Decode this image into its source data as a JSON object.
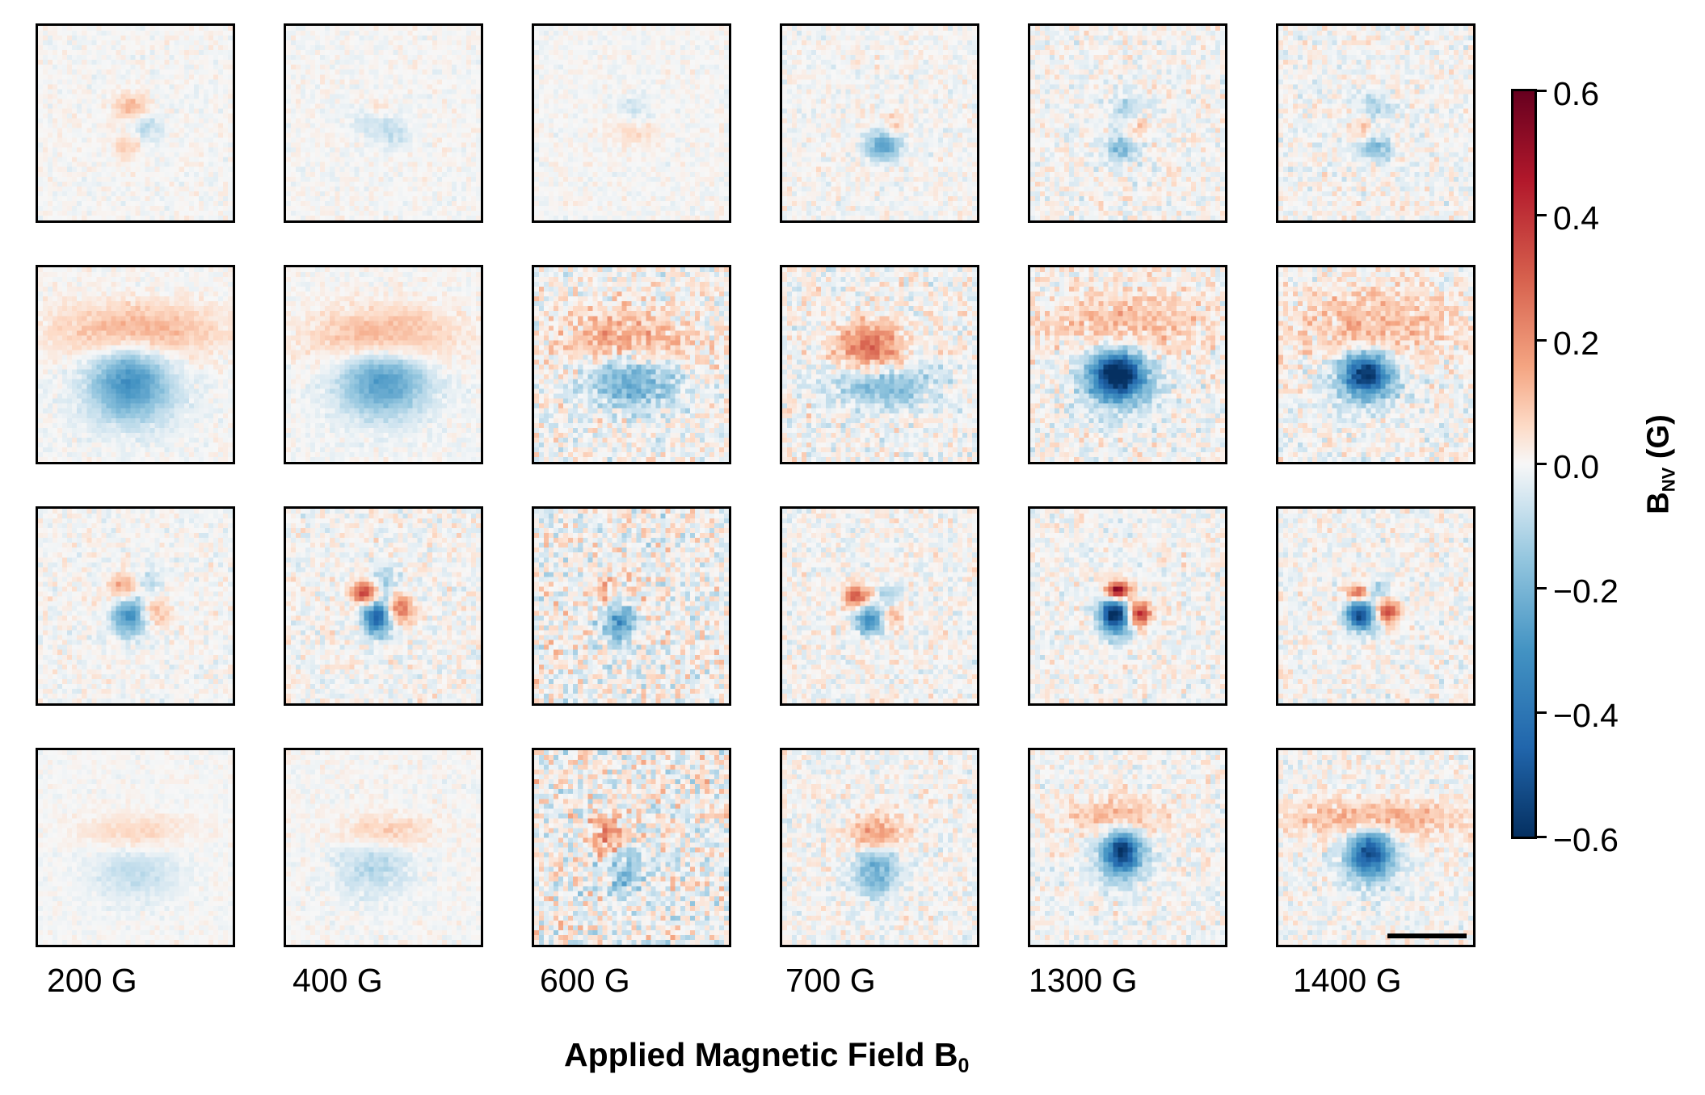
{
  "chart_data": {
    "type": "heatmap",
    "title": "",
    "xlabel": "Applied Magnetic Field B",
    "xlabel_subscript": "0",
    "columns": [
      "200 G",
      "400 G",
      "600 G",
      "700 G",
      "1300 G",
      "1400 G"
    ],
    "rows": 4,
    "colorbar": {
      "label": "B",
      "label_subscript": "NV",
      "label_unit": "(G)",
      "colormap": "RdBu_r",
      "range": [
        -0.6,
        0.6
      ],
      "ticks": [
        "0.6",
        "0.4",
        "0.2",
        "0.0",
        "−0.2",
        "−0.4",
        "−0.6"
      ],
      "tick_values": [
        0.6,
        0.4,
        0.2,
        0.0,
        -0.2,
        -0.4,
        -0.6
      ]
    },
    "panels": [
      [
        {
          "noise": 0.02,
          "features": [
            [
              0.48,
              0.42,
              0.06,
              0.05,
              0.12
            ],
            [
              0.55,
              0.52,
              0.06,
              0.05,
              -0.1
            ],
            [
              0.46,
              0.62,
              0.05,
              0.04,
              0.1
            ]
          ]
        },
        {
          "noise": 0.02,
          "features": [
            [
              0.42,
              0.5,
              0.06,
              0.05,
              -0.06
            ],
            [
              0.55,
              0.55,
              0.06,
              0.06,
              -0.08
            ],
            [
              0.48,
              0.42,
              0.05,
              0.04,
              0.05
            ]
          ]
        },
        {
          "noise": 0.02,
          "features": [
            [
              0.52,
              0.42,
              0.06,
              0.04,
              -0.06
            ],
            [
              0.45,
              0.55,
              0.07,
              0.04,
              0.05
            ],
            [
              0.6,
              0.55,
              0.04,
              0.04,
              0.05
            ]
          ]
        },
        {
          "noise": 0.03,
          "features": [
            [
              0.52,
              0.62,
              0.06,
              0.05,
              -0.25
            ],
            [
              0.58,
              0.5,
              0.04,
              0.04,
              0.08
            ]
          ]
        },
        {
          "noise": 0.04,
          "features": [
            [
              0.5,
              0.42,
              0.06,
              0.05,
              -0.12
            ],
            [
              0.55,
              0.52,
              0.04,
              0.04,
              0.12
            ],
            [
              0.47,
              0.63,
              0.06,
              0.05,
              -0.18
            ]
          ]
        },
        {
          "noise": 0.04,
          "features": [
            [
              0.5,
              0.42,
              0.06,
              0.05,
              -0.1
            ],
            [
              0.43,
              0.53,
              0.04,
              0.04,
              0.1
            ],
            [
              0.5,
              0.63,
              0.06,
              0.04,
              -0.2
            ]
          ]
        }
      ],
      [
        {
          "noise": 0.02,
          "features": [
            [
              0.5,
              0.33,
              0.3,
              0.1,
              0.14
            ],
            [
              0.47,
              0.58,
              0.13,
              0.12,
              -0.24
            ],
            [
              0.48,
              0.66,
              0.2,
              0.14,
              -0.08
            ]
          ]
        },
        {
          "noise": 0.02,
          "features": [
            [
              0.5,
              0.35,
              0.26,
              0.1,
              0.13
            ],
            [
              0.5,
              0.58,
              0.14,
              0.1,
              -0.22
            ],
            [
              0.5,
              0.66,
              0.2,
              0.13,
              -0.07
            ]
          ]
        },
        {
          "noise": 0.06,
          "features": [
            [
              0.48,
              0.38,
              0.24,
              0.1,
              0.17
            ],
            [
              0.5,
              0.58,
              0.16,
              0.1,
              -0.24
            ]
          ]
        },
        {
          "noise": 0.05,
          "features": [
            [
              0.45,
              0.42,
              0.12,
              0.09,
              0.28
            ],
            [
              0.5,
              0.6,
              0.18,
              0.08,
              -0.2
            ]
          ]
        },
        {
          "noise": 0.05,
          "features": [
            [
              0.48,
              0.3,
              0.28,
              0.14,
              0.12
            ],
            [
              0.45,
              0.55,
              0.09,
              0.08,
              -0.58
            ],
            [
              0.45,
              0.57,
              0.16,
              0.13,
              -0.15
            ]
          ]
        },
        {
          "noise": 0.05,
          "features": [
            [
              0.5,
              0.3,
              0.3,
              0.14,
              0.12
            ],
            [
              0.45,
              0.55,
              0.08,
              0.07,
              -0.5
            ],
            [
              0.45,
              0.57,
              0.15,
              0.12,
              -0.12
            ]
          ]
        }
      ],
      [
        {
          "noise": 0.03,
          "features": [
            [
              0.45,
              0.4,
              0.06,
              0.05,
              0.18
            ],
            [
              0.55,
              0.38,
              0.05,
              0.05,
              -0.1
            ],
            [
              0.47,
              0.55,
              0.06,
              0.07,
              -0.3
            ],
            [
              0.6,
              0.53,
              0.05,
              0.05,
              0.12
            ]
          ]
        },
        {
          "noise": 0.04,
          "features": [
            [
              0.41,
              0.43,
              0.05,
              0.04,
              0.38
            ],
            [
              0.5,
              0.38,
              0.05,
              0.05,
              -0.15
            ],
            [
              0.58,
              0.52,
              0.05,
              0.05,
              0.25
            ],
            [
              0.47,
              0.56,
              0.05,
              0.06,
              -0.48
            ]
          ]
        },
        {
          "noise": 0.07,
          "features": [
            [
              0.38,
              0.43,
              0.06,
              0.06,
              0.12
            ],
            [
              0.44,
              0.58,
              0.06,
              0.08,
              -0.3
            ],
            [
              0.55,
              0.5,
              0.05,
              0.05,
              0.1
            ]
          ]
        },
        {
          "noise": 0.04,
          "features": [
            [
              0.38,
              0.45,
              0.05,
              0.04,
              0.3
            ],
            [
              0.55,
              0.45,
              0.04,
              0.04,
              -0.12
            ],
            [
              0.45,
              0.57,
              0.05,
              0.05,
              -0.33
            ],
            [
              0.56,
              0.55,
              0.04,
              0.04,
              0.15
            ]
          ]
        },
        {
          "noise": 0.04,
          "features": [
            [
              0.45,
              0.42,
              0.04,
              0.03,
              0.55
            ],
            [
              0.56,
              0.54,
              0.04,
              0.04,
              0.42
            ],
            [
              0.43,
              0.54,
              0.05,
              0.05,
              -0.62
            ],
            [
              0.45,
              0.63,
              0.05,
              0.05,
              -0.15
            ]
          ]
        },
        {
          "noise": 0.04,
          "features": [
            [
              0.41,
              0.43,
              0.04,
              0.03,
              0.3
            ],
            [
              0.5,
              0.42,
              0.04,
              0.03,
              -0.15
            ],
            [
              0.56,
              0.53,
              0.04,
              0.04,
              0.35
            ],
            [
              0.42,
              0.55,
              0.05,
              0.05,
              -0.55
            ]
          ]
        }
      ],
      [
        {
          "noise": 0.015,
          "features": [
            [
              0.5,
              0.42,
              0.18,
              0.06,
              0.08
            ],
            [
              0.5,
              0.63,
              0.16,
              0.1,
              -0.08
            ]
          ]
        },
        {
          "noise": 0.02,
          "features": [
            [
              0.5,
              0.42,
              0.16,
              0.06,
              0.1
            ],
            [
              0.45,
              0.6,
              0.13,
              0.11,
              -0.1
            ]
          ]
        },
        {
          "noise": 0.08,
          "features": [
            [
              0.38,
              0.43,
              0.06,
              0.07,
              0.22
            ],
            [
              0.47,
              0.62,
              0.07,
              0.09,
              -0.18
            ]
          ]
        },
        {
          "noise": 0.04,
          "features": [
            [
              0.48,
              0.43,
              0.09,
              0.06,
              0.2
            ],
            [
              0.48,
              0.62,
              0.08,
              0.09,
              -0.22
            ]
          ]
        },
        {
          "noise": 0.04,
          "features": [
            [
              0.45,
              0.35,
              0.16,
              0.07,
              0.14
            ],
            [
              0.47,
              0.52,
              0.06,
              0.07,
              -0.48
            ],
            [
              0.47,
              0.55,
              0.11,
              0.12,
              -0.12
            ]
          ]
        },
        {
          "noise": 0.04,
          "features": [
            [
              0.5,
              0.35,
              0.3,
              0.07,
              0.15
            ],
            [
              0.47,
              0.53,
              0.07,
              0.08,
              -0.42
            ],
            [
              0.47,
              0.56,
              0.12,
              0.13,
              -0.1
            ]
          ]
        }
      ]
    ]
  }
}
